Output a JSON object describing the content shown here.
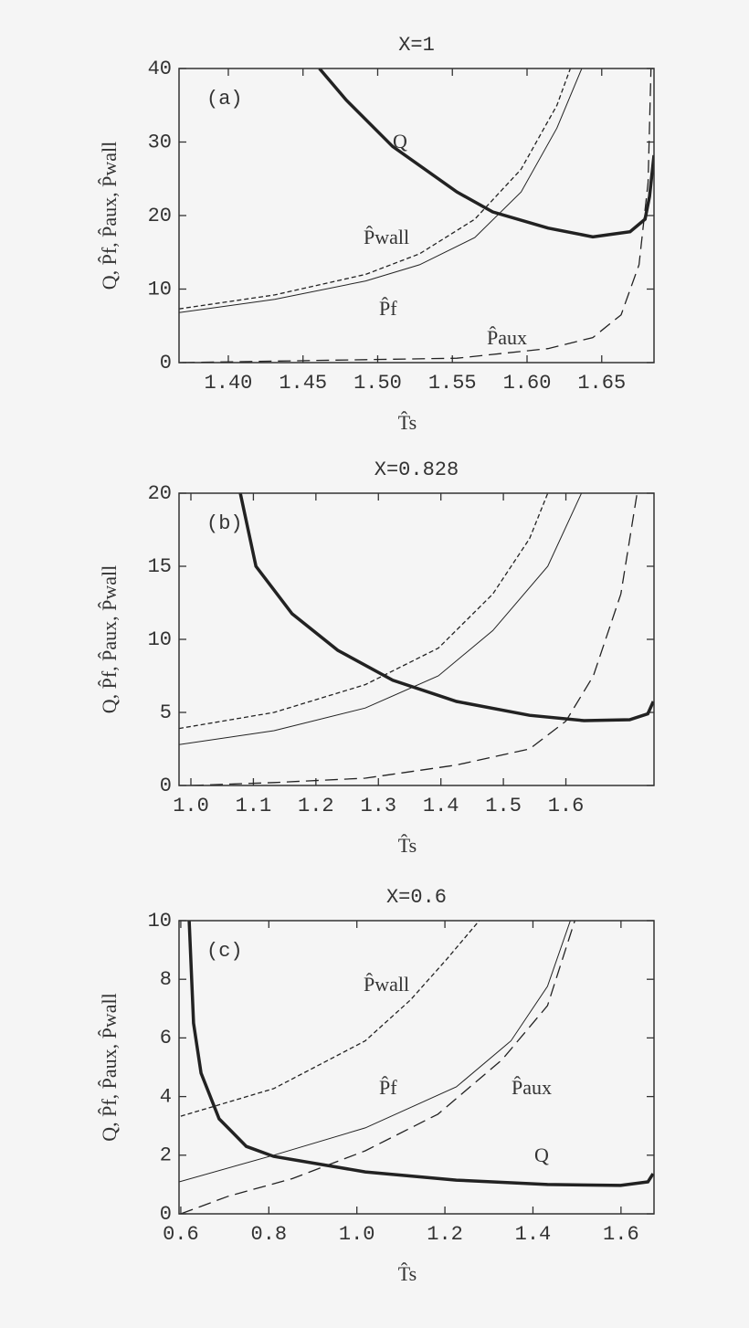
{
  "chart_data": [
    {
      "type": "line",
      "title": "X=1",
      "panel_label": "(a)",
      "xlabel": "T̂s",
      "ylabel": "Q, P̂f, P̂aux, P̂wall",
      "xlim": [
        1.367,
        1.685
      ],
      "ylim": [
        0,
        40
      ],
      "xticks": [
        {
          "value": 1.4,
          "label": "1.40"
        },
        1.45,
        {
          "value": 1.5,
          "label": "1.50"
        },
        1.55,
        {
          "value": 1.6,
          "label": "1.60"
        },
        1.65
      ],
      "yticks": [
        0,
        10,
        20,
        30,
        40
      ],
      "series": [
        {
          "name": "Q",
          "color": "#222222",
          "width": 3.5,
          "dash": "solid",
          "x": [
            1.461,
            1.479,
            1.51,
            1.553,
            1.577,
            1.614,
            1.644,
            1.669,
            1.679,
            1.682,
            1.685
          ],
          "values": [
            40,
            35.7,
            29.4,
            23.2,
            20.5,
            18.3,
            17.1,
            17.8,
            19.5,
            22.6,
            28.2
          ]
        },
        {
          "name": "P̂wall",
          "color": "#222222",
          "width": 1.3,
          "dash": "short",
          "x": [
            1.367,
            1.431,
            1.492,
            1.528,
            1.565,
            1.596,
            1.62,
            1.629
          ],
          "values": [
            7.3,
            9.2,
            12.0,
            14.8,
            19.5,
            26.3,
            35.0,
            40
          ]
        },
        {
          "name": "P̂f",
          "color": "#222222",
          "width": 1,
          "dash": "solid",
          "x": [
            1.367,
            1.431,
            1.492,
            1.528,
            1.565,
            1.596,
            1.62,
            1.6366
          ],
          "values": [
            6.8,
            8.6,
            11.1,
            13.3,
            17.0,
            23.2,
            31.9,
            40
          ]
        },
        {
          "name": "P̂aux",
          "color": "#222222",
          "width": 1.3,
          "dash": "long",
          "x": [
            1.369,
            1.492,
            1.553,
            1.614,
            1.644,
            1.663,
            1.675,
            1.681,
            1.683
          ],
          "values": [
            0,
            0.4,
            0.6,
            1.9,
            3.4,
            6.5,
            13.3,
            24.5,
            40
          ]
        }
      ]
    },
    {
      "type": "line",
      "title": "X=0.828",
      "panel_label": "(b)",
      "xlabel": "T̂s",
      "ylabel": "Q, P̂f, P̂aux, P̂wall",
      "xlim": [
        0.981,
        1.741
      ],
      "ylim": [
        0,
        20
      ],
      "xticks": [
        {
          "value": 1,
          "label": "1.0"
        },
        1.1,
        1.2,
        1.3,
        1.4,
        1.5,
        1.6
      ],
      "yticks": [
        0,
        5,
        10,
        15,
        20
      ],
      "series": [
        {
          "color": "#222222",
          "width": 3.5,
          "dash": "solid",
          "x": [
            1.079,
            1.104,
            1.162,
            1.235,
            1.323,
            1.425,
            1.542,
            1.629,
            1.702,
            1.731,
            1.74
          ],
          "values": [
            20,
            15,
            11.75,
            9.25,
            7.2,
            5.75,
            4.8,
            4.44,
            4.5,
            4.9,
            5.75
          ]
        },
        {
          "color": "#222222",
          "width": 1.3,
          "dash": "short",
          "x": [
            0.981,
            1.133,
            1.279,
            1.396,
            1.483,
            1.542,
            1.571
          ],
          "values": [
            3.9,
            5.0,
            6.9,
            9.4,
            13.1,
            16.9,
            20
          ]
        },
        {
          "color": "#222222",
          "width": 1,
          "dash": "solid",
          "x": [
            0.981,
            1.133,
            1.279,
            1.396,
            1.483,
            1.571,
            1.625
          ],
          "values": [
            2.8,
            3.75,
            5.3,
            7.5,
            10.6,
            15,
            20
          ]
        },
        {
          "color": "#222222",
          "width": 1.3,
          "dash": "long",
          "x": [
            1.0,
            1.133,
            1.279,
            1.425,
            1.542,
            1.6,
            1.644,
            1.688,
            1.714
          ],
          "values": [
            0,
            0.2,
            0.5,
            1.4,
            2.5,
            4.4,
            7.5,
            13.1,
            20
          ]
        }
      ]
    },
    {
      "type": "line",
      "title": "X=0.6",
      "panel_label": "(c)",
      "xlabel": "T̂s",
      "ylabel": "Q, P̂f, P̂aux, P̂wall",
      "xlim": [
        0.596,
        1.675
      ],
      "ylim": [
        0,
        10
      ],
      "xticks": [
        0.6,
        0.8,
        {
          "value": 1,
          "label": "1.0"
        },
        1.2,
        1.4,
        1.6
      ],
      "yticks": [
        0,
        2,
        4,
        6,
        8,
        10
      ],
      "series": [
        {
          "name": "Q",
          "color": "#222222",
          "width": 3.5,
          "dash": "solid",
          "x": [
            0.619,
            0.629,
            0.646,
            0.687,
            0.749,
            0.811,
            1.019,
            1.226,
            1.433,
            1.599,
            1.661,
            1.673
          ],
          "values": [
            10,
            6.5,
            4.8,
            3.24,
            2.3,
            1.96,
            1.43,
            1.15,
            1.0,
            0.97,
            1.09,
            1.37
          ]
        },
        {
          "name": "P̂wall",
          "color": "#222222",
          "width": 1.3,
          "dash": "short",
          "x": [
            0.6,
            0.811,
            1.019,
            1.122,
            1.205,
            1.278
          ],
          "values": [
            3.33,
            4.27,
            5.9,
            7.3,
            8.7,
            10
          ]
        },
        {
          "name": "P̂f",
          "color": "#222222",
          "width": 1,
          "dash": "solid",
          "x": [
            0.596,
            0.811,
            1.019,
            1.226,
            1.35,
            1.433,
            1.485
          ],
          "values": [
            1.09,
            2.0,
            2.93,
            4.33,
            5.9,
            7.76,
            10
          ]
        },
        {
          "name": "P̂aux",
          "color": "#222222",
          "width": 1.3,
          "dash": "long",
          "x": [
            0.6,
            0.708,
            0.853,
            1.019,
            1.184,
            1.33,
            1.433,
            1.495
          ],
          "values": [
            0,
            0.6,
            1.2,
            2.15,
            3.4,
            5.26,
            7.1,
            10
          ]
        }
      ]
    }
  ]
}
